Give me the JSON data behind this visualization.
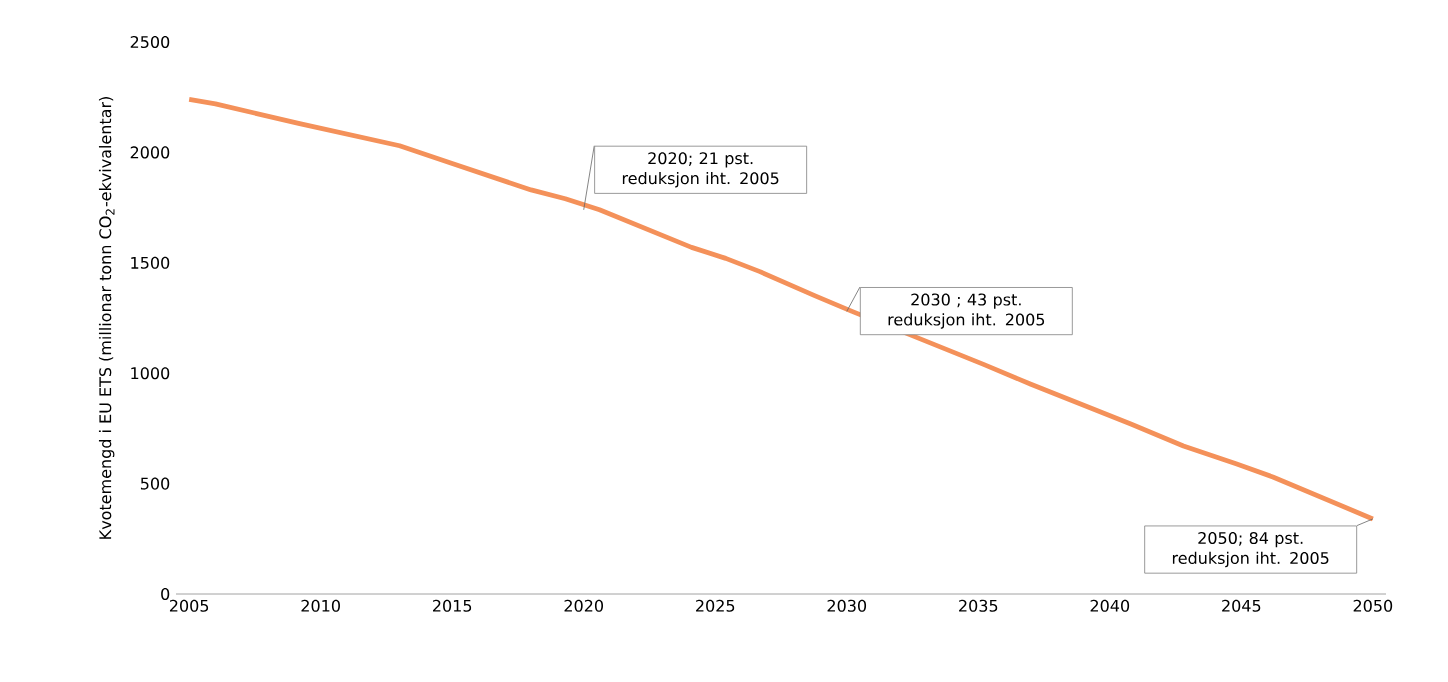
{
  "chart_data": {
    "type": "line",
    "ylabel": "Kvotemengd i EU ETS (millionar tonn CO$_{2}$-ekvivalentar)",
    "x": [
      2005,
      2006,
      2009.2,
      2013,
      2015,
      2018,
      2019.3,
      2020.6,
      2024.1,
      2025.4,
      2026.7,
      2028.8,
      2030.2,
      2035.2,
      2037,
      2040.8,
      2042.8,
      2044.8,
      2046.2,
      2050
    ],
    "values": [
      2240,
      2220,
      2130,
      2030,
      1950,
      1830,
      1790,
      1740,
      1570,
      1520,
      1460,
      1350,
      1280,
      1040,
      950,
      770,
      670,
      590,
      530,
      340
    ],
    "color": "#f4915a",
    "xlim": [
      2004.5,
      2050.5
    ],
    "ylim": [
      0,
      2500
    ],
    "xticks": [
      2005,
      2010,
      2015,
      2020,
      2025,
      2030,
      2035,
      2040,
      2045,
      2050
    ],
    "yticks": [
      0,
      500,
      1000,
      1500,
      2000,
      2500
    ],
    "annotations": [
      {
        "text": "2020; 21 pst. reduksjon iht. 2005",
        "x": 2020,
        "y": 1740
      },
      {
        "text": "2030 ; 43 pst. reduksjon iht. 2005",
        "x": 2030,
        "y": 1280
      },
      {
        "text": "2050; 84 pst. reduksjon iht. 2005",
        "x": 2050,
        "y": 340
      }
    ]
  }
}
